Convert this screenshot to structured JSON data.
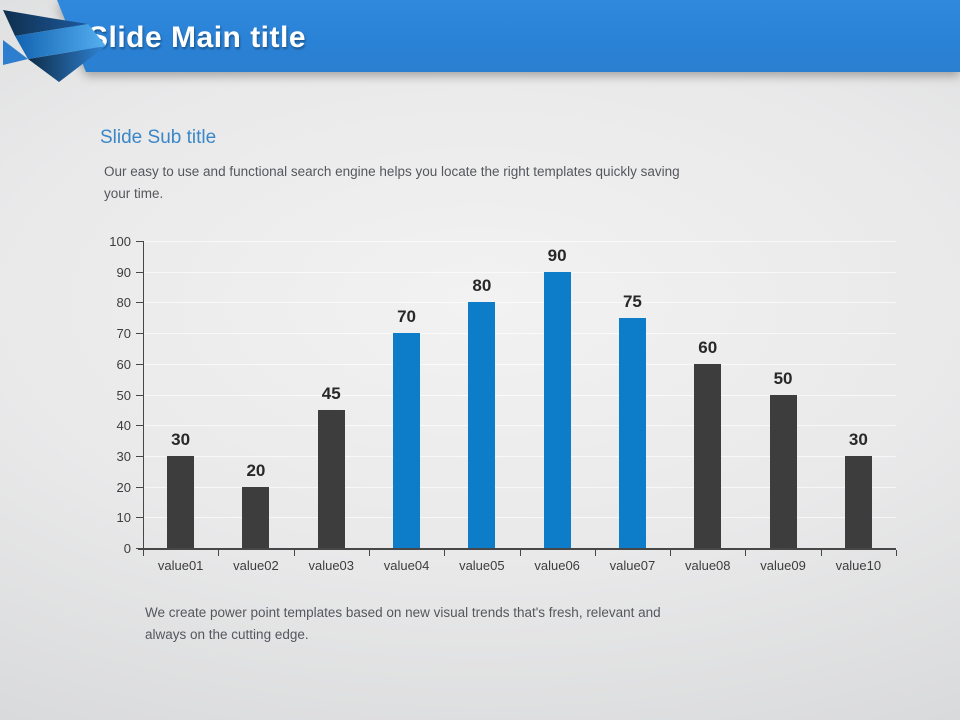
{
  "slide": {
    "main_title": "Slide Main title",
    "sub_title": "Slide Sub title",
    "description": "Our easy to use and functional search engine helps you locate the right templates quickly saving your time.",
    "footer": "We create power point templates based on new visual trends that's fresh, relevant and always on the cutting edge."
  },
  "colors": {
    "header_blue": "#2a83d8",
    "subtitle_blue": "#3a87c8",
    "bar_blue": "#0d7dca",
    "bar_dark": "#3d3d3d",
    "axis": "#474747",
    "gridline": "rgba(255,255,255,0.65)",
    "value_label": "#282828",
    "tick_label": "#3d3d3d",
    "body_text": "#55575c",
    "ribbon_dark_navy": "#0f2f4d",
    "ribbon_deep_blue": "#1d5a9e",
    "ribbon_mid_blue": "#2d7ecf",
    "ribbon_light_blue": "#55b0f0"
  },
  "chart_data": {
    "type": "bar",
    "title": "",
    "xlabel": "",
    "ylabel": "",
    "categories": [
      "value01",
      "value02",
      "value03",
      "value04",
      "value05",
      "value06",
      "value07",
      "value08",
      "value09",
      "value10"
    ],
    "values": [
      30,
      20,
      45,
      70,
      80,
      90,
      75,
      60,
      50,
      30
    ],
    "bar_colors": [
      "dark",
      "dark",
      "dark",
      "blue",
      "blue",
      "blue",
      "blue",
      "dark",
      "dark",
      "dark"
    ],
    "ylim": [
      0,
      100
    ],
    "ytick_step": 10,
    "grid": true,
    "data_labels": true,
    "legend": "none"
  }
}
